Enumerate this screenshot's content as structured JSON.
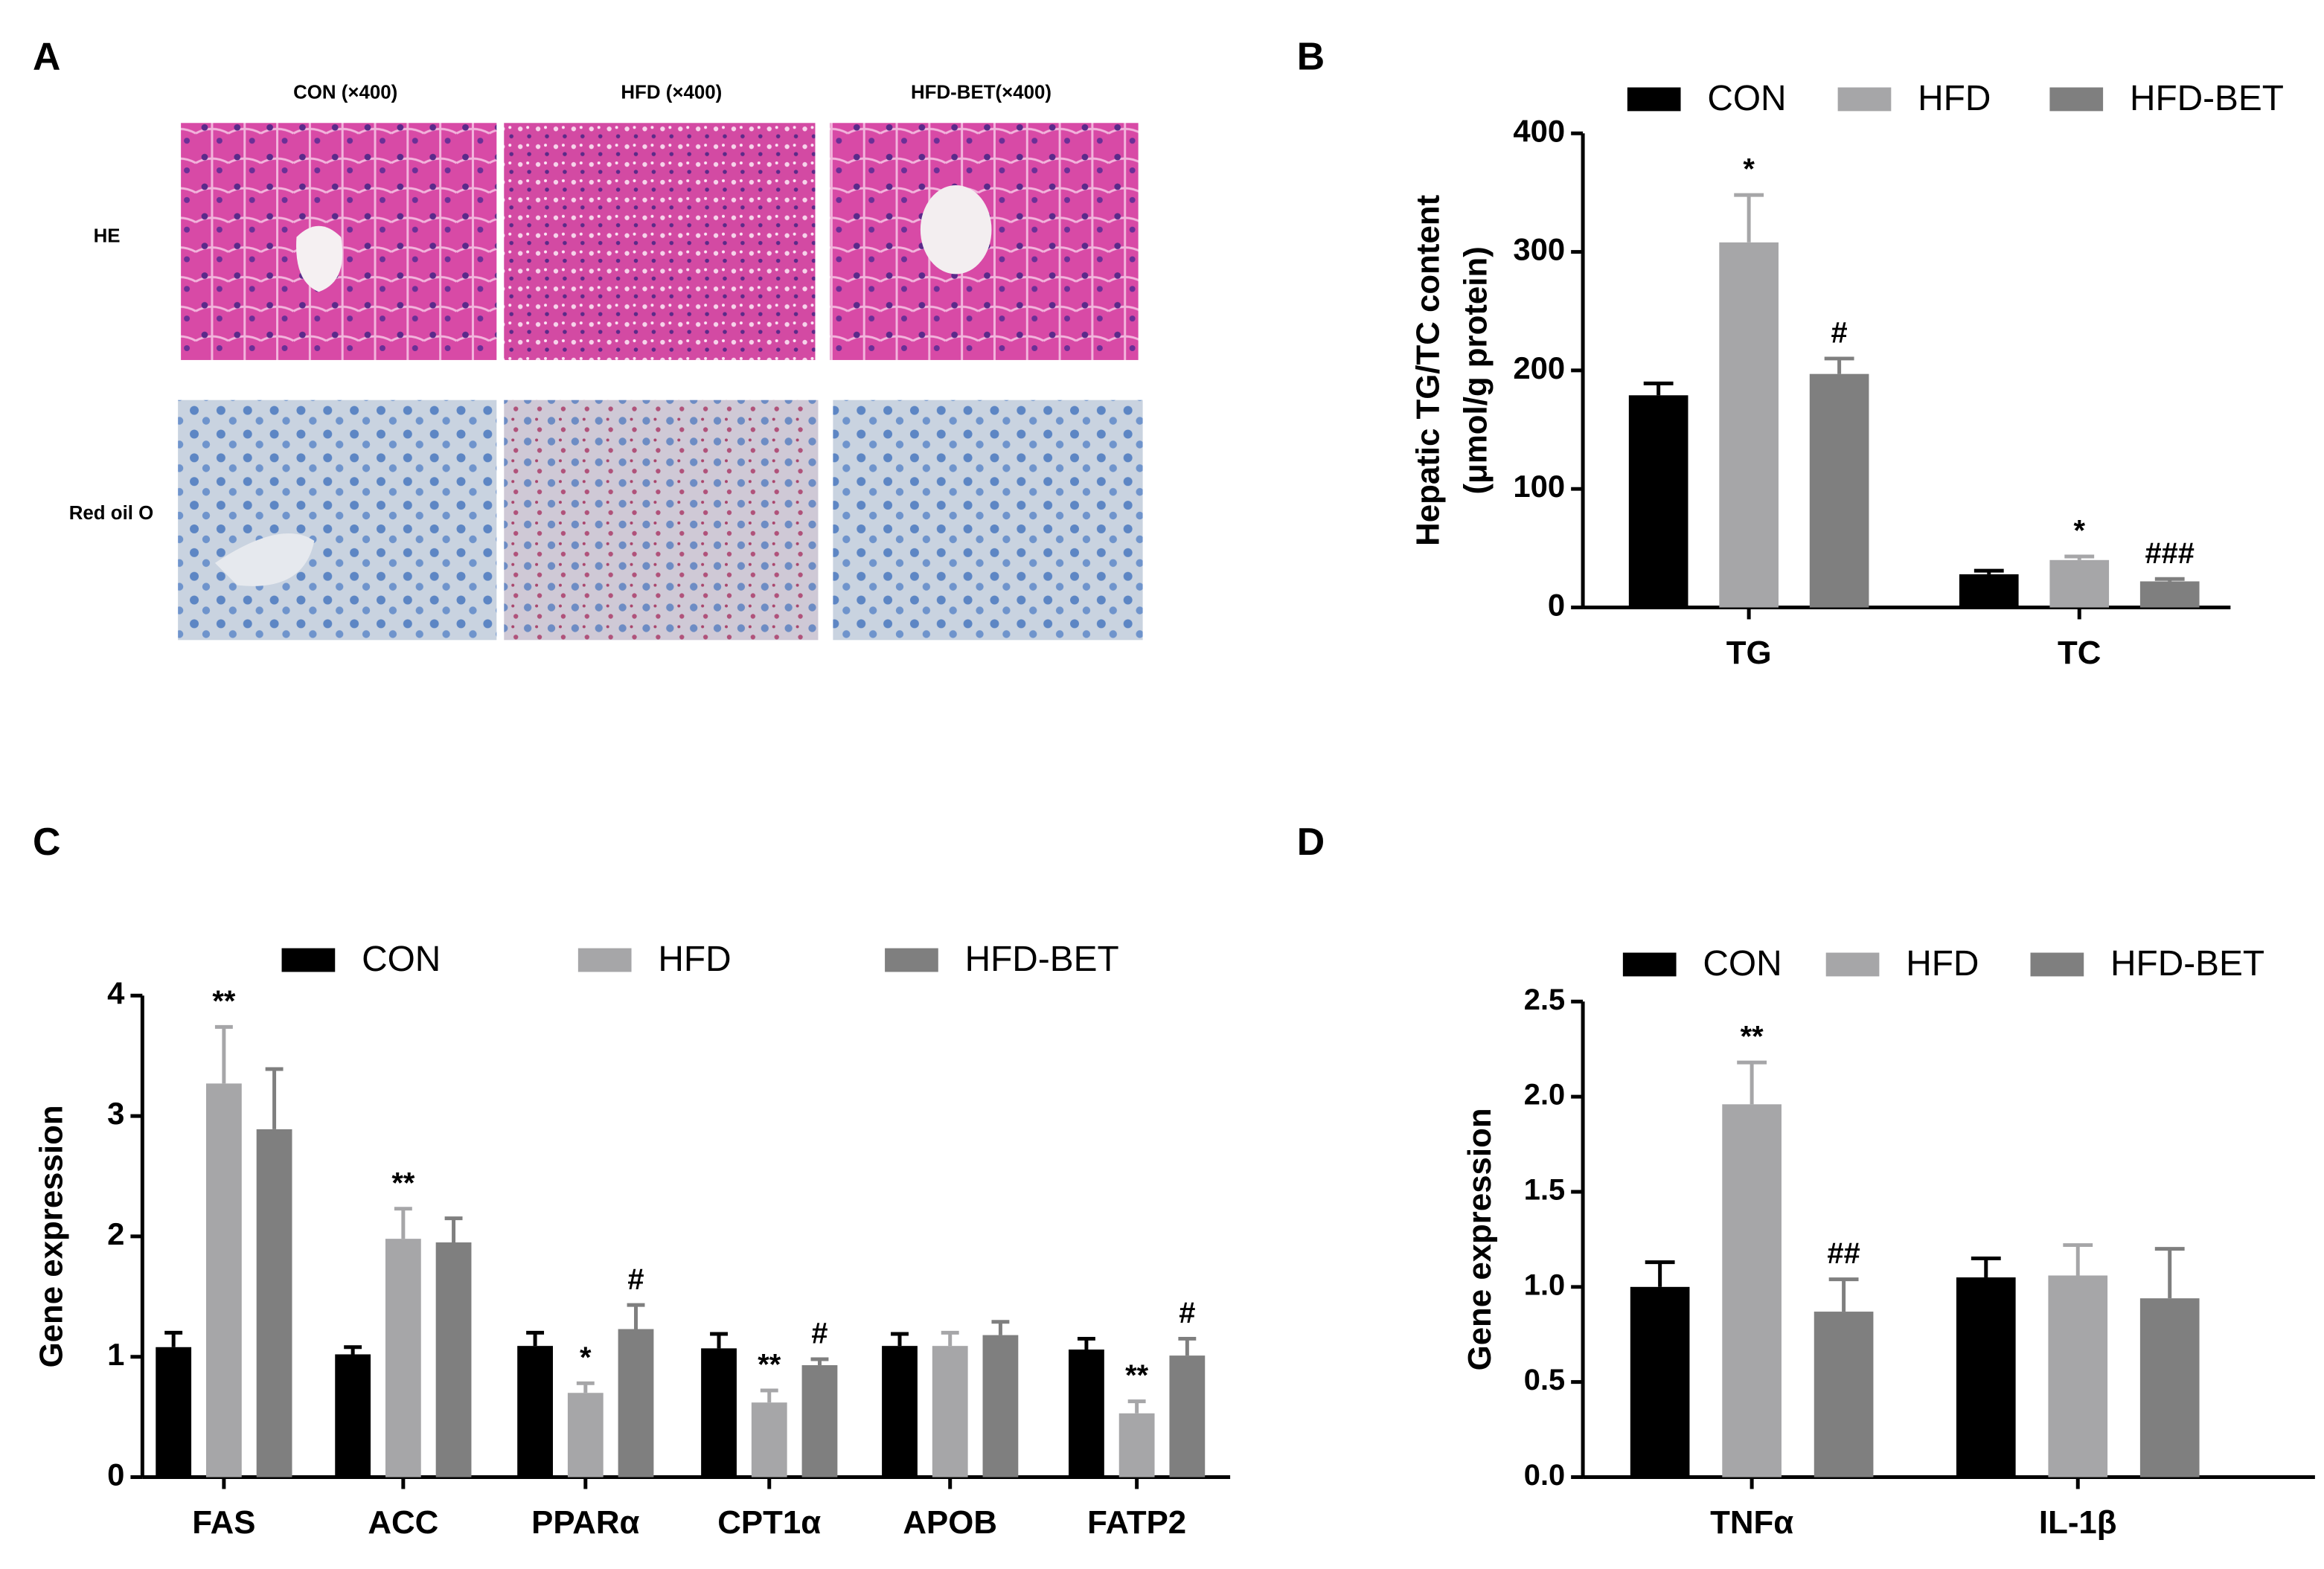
{
  "panel_a": {
    "label": "A",
    "columns": [
      "CON (×400)",
      "HFD (×400)",
      "HFD-BET(×400)"
    ],
    "rows": [
      "HE",
      "Red oil O"
    ]
  },
  "chart_data": [
    {
      "type": "bar",
      "label": "B",
      "y_label": [
        "Hepatic TG/TC content",
        "(μmol/g protein)"
      ],
      "categories": [
        "TG",
        "TC"
      ],
      "series": [
        {
          "name": "CON",
          "color": "#000000",
          "values": [
            179,
            28
          ],
          "errors": [
            10,
            3
          ],
          "annotations": [
            null,
            null
          ]
        },
        {
          "name": "HFD",
          "color": "#a6a6a8",
          "values": [
            308,
            40
          ],
          "errors": [
            40,
            3
          ],
          "annotations": [
            "*",
            "*"
          ]
        },
        {
          "name": "HFD-BET",
          "color": "#7f7f7f",
          "values": [
            197,
            22
          ],
          "errors": [
            13,
            2
          ],
          "annotations": [
            "#",
            "###"
          ]
        }
      ],
      "ylim": [
        0,
        400
      ],
      "yticks": [
        0,
        100,
        200,
        300,
        400
      ]
    },
    {
      "type": "bar",
      "label": "C",
      "y_label": [
        "Gene expression"
      ],
      "categories": [
        "FAS",
        "ACC",
        "PPARα",
        "CPT1α",
        "APOB",
        "FATP2"
      ],
      "series": [
        {
          "name": "CON",
          "color": "#000000",
          "values": [
            1.08,
            1.02,
            1.09,
            1.07,
            1.09,
            1.06
          ],
          "errors": [
            0.12,
            0.06,
            0.11,
            0.12,
            0.1,
            0.09
          ],
          "annotations": [
            null,
            null,
            null,
            null,
            null,
            null
          ]
        },
        {
          "name": "HFD",
          "color": "#a6a6a8",
          "values": [
            3.27,
            1.98,
            0.7,
            0.62,
            1.09,
            0.53
          ],
          "errors": [
            0.47,
            0.25,
            0.08,
            0.1,
            0.11,
            0.1
          ],
          "annotations": [
            "**",
            "**",
            "*",
            "**",
            null,
            "**"
          ]
        },
        {
          "name": "HFD-BET",
          "color": "#7f7f7f",
          "values": [
            2.89,
            1.95,
            1.23,
            0.93,
            1.18,
            1.01
          ],
          "errors": [
            0.5,
            0.2,
            0.2,
            0.05,
            0.11,
            0.14
          ],
          "annotations": [
            null,
            null,
            "#",
            "#",
            null,
            "#"
          ]
        }
      ],
      "ylim": [
        0,
        4
      ],
      "yticks": [
        0,
        1,
        2,
        3,
        4
      ]
    },
    {
      "type": "bar",
      "label": "D",
      "y_label": [
        "Gene expression"
      ],
      "categories": [
        "TNFα",
        "IL-1β"
      ],
      "series": [
        {
          "name": "CON",
          "color": "#000000",
          "values": [
            1.0,
            1.05
          ],
          "errors": [
            0.13,
            0.1
          ],
          "annotations": [
            null,
            null
          ]
        },
        {
          "name": "HFD",
          "color": "#a6a6a8",
          "values": [
            1.96,
            1.06
          ],
          "errors": [
            0.22,
            0.16
          ],
          "annotations": [
            "**",
            null
          ]
        },
        {
          "name": "HFD-BET",
          "color": "#7f7f7f",
          "values": [
            0.87,
            0.94
          ],
          "errors": [
            0.17,
            0.26
          ],
          "annotations": [
            "##",
            null
          ]
        }
      ],
      "ylim": [
        0,
        2.5
      ],
      "yticks": [
        {
          "value": 0,
          "label": "0.0"
        },
        0.5,
        {
          "value": 1,
          "label": "1.0"
        },
        1.5,
        {
          "value": 2,
          "label": "2.0"
        },
        2.5
      ]
    }
  ]
}
